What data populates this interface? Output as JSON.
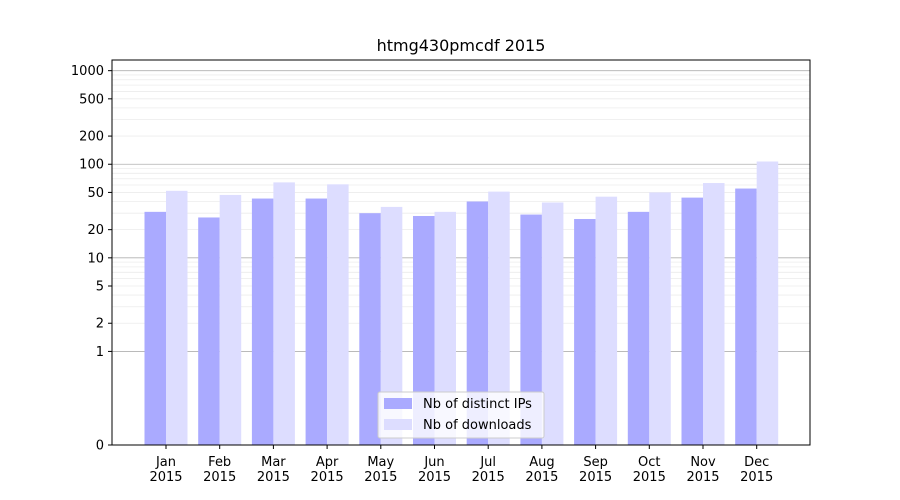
{
  "chart_data": {
    "type": "bar",
    "title": "htmg430pmcdf 2015",
    "xlabel": "",
    "ylabel": "",
    "yscale": "symlog",
    "ylim": [
      0,
      1300
    ],
    "yticks": [
      0,
      1,
      2,
      5,
      10,
      20,
      50,
      100,
      200,
      500,
      1000
    ],
    "categories": [
      "Jan\n2015",
      "Feb\n2015",
      "Mar\n2015",
      "Apr\n2015",
      "May\n2015",
      "Jun\n2015",
      "Jul\n2015",
      "Aug\n2015",
      "Sep\n2015",
      "Oct\n2015",
      "Nov\n2015",
      "Dec\n2015"
    ],
    "series": [
      {
        "name": "Nb of distinct IPs",
        "color": "#aaaaff",
        "values": [
          31,
          27,
          43,
          43,
          30,
          28,
          40,
          29,
          26,
          31,
          44,
          55
        ]
      },
      {
        "name": "Nb of downloads",
        "color": "#ddddff",
        "values": [
          52,
          47,
          64,
          61,
          35,
          31,
          51,
          39,
          45,
          50,
          63,
          107
        ]
      }
    ],
    "grid": true,
    "legend": "lower center"
  }
}
